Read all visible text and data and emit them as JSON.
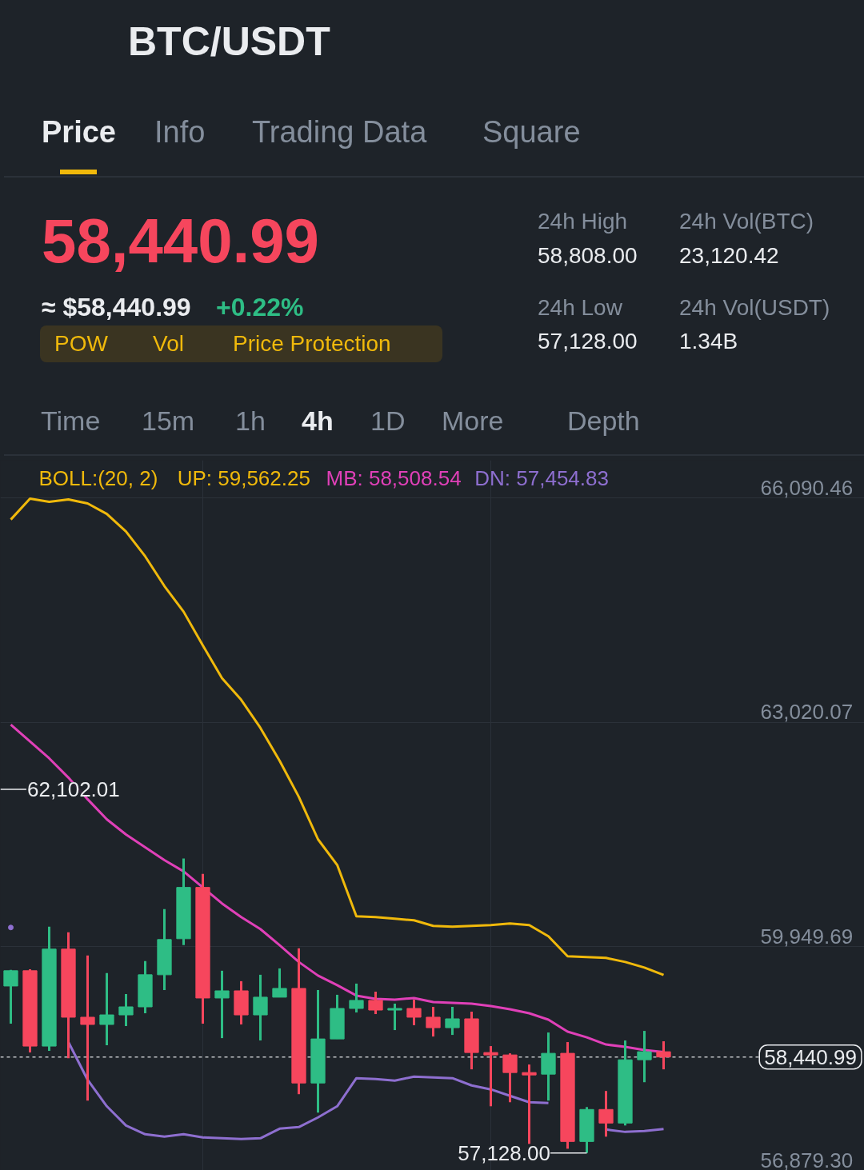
{
  "chart_data": {
    "type": "candlestick",
    "title": "BTC/USDT",
    "legend_title": "BOLL:(20, 2)",
    "legend": "top",
    "grid": true,
    "tick_labels": "y",
    "categories": [
      null,
      null,
      null,
      null,
      null,
      null,
      null,
      null,
      null,
      null,
      null,
      null,
      null,
      null,
      null,
      null,
      null,
      null,
      null,
      null,
      null,
      null,
      null,
      null,
      null,
      null,
      null,
      null,
      null,
      null,
      null,
      null,
      null,
      null,
      null
    ],
    "ohlc": [
      [
        59412,
        59632,
        58897,
        59621
      ],
      [
        59621,
        59642,
        58502,
        58590
      ],
      [
        58590,
        60224,
        58524,
        59917
      ],
      [
        59917,
        60147,
        58425,
        58985
      ],
      [
        58985,
        59829,
        57844,
        58886
      ],
      [
        58886,
        59588,
        58601,
        59017
      ],
      [
        59017,
        59303,
        58864,
        59127
      ],
      [
        59127,
        59752,
        59039,
        59566
      ],
      [
        59566,
        60465,
        59357,
        60048
      ],
      [
        60059,
        61156,
        59971,
        60761
      ],
      [
        60761,
        60947,
        58897,
        59248
      ],
      [
        59248,
        59621,
        58699,
        59346
      ],
      [
        59346,
        59478,
        58886,
        59017
      ],
      [
        59017,
        59566,
        58667,
        59259
      ],
      [
        59259,
        59653,
        59259,
        59379
      ],
      [
        59379,
        59928,
        57932,
        58085
      ],
      [
        58085,
        59357,
        57680,
        58688
      ],
      [
        58688,
        59292,
        58688,
        59105
      ],
      [
        59105,
        59445,
        59050,
        59215
      ],
      [
        59215,
        59335,
        59028,
        59083
      ],
      [
        59083,
        59171,
        58809,
        59105
      ],
      [
        59105,
        59226,
        58875,
        58985
      ],
      [
        58985,
        59127,
        58721,
        58842
      ],
      [
        58842,
        59127,
        58743,
        58963
      ],
      [
        58963,
        59061,
        58272,
        58502
      ],
      [
        58502,
        58590,
        57767,
        58469
      ],
      [
        58469,
        58491,
        57822,
        58228
      ],
      [
        58228,
        58338,
        57252,
        58195
      ],
      [
        58206,
        58776,
        57844,
        58491
      ],
      [
        58491,
        58645,
        57186,
        57285
      ],
      [
        57285,
        57756,
        57128.0,
        57723
      ],
      [
        57723,
        57976,
        57351,
        57537
      ],
      [
        57537,
        58667,
        57504,
        58403
      ],
      [
        58403,
        58798,
        58096,
        58513
      ],
      [
        58513,
        58656,
        58272,
        58440.99
      ]
    ],
    "series": [
      {
        "type": "line",
        "name": "UP: 59,562.25",
        "color": "#f0b90b",
        "values": [
          65794,
          66080,
          66036,
          66069,
          66014,
          65871,
          65630,
          65290,
          64884,
          64533,
          64073,
          63623,
          63327,
          62943,
          62494,
          62000,
          61419,
          61068,
          60366,
          60355,
          60333,
          60311,
          60235,
          60224,
          60235,
          60246,
          60268,
          60246,
          60092,
          59818,
          59807,
          59796,
          59741,
          59664,
          59562.25
        ]
      },
      {
        "type": "line",
        "name": "MB: 58,508.54",
        "color": "#e040b8",
        "values": [
          62987,
          62757,
          62527,
          62263,
          61967,
          61693,
          61485,
          61309,
          61134,
          60980,
          60761,
          60542,
          60355,
          60191,
          59971,
          59741,
          59555,
          59423,
          59281,
          59237,
          59226,
          59248,
          59193,
          59182,
          59171,
          59138,
          59094,
          59039,
          58952,
          58787,
          58710,
          58612,
          58579,
          58535,
          58508.54
        ]
      },
      {
        "type": "line",
        "name": "DN: 57,454.83",
        "color": "#8e6fd0",
        "values": [
          60213,
          null,
          null,
          58645,
          58129,
          57767,
          57504,
          57384,
          57351,
          57384,
          57340,
          57329,
          57318,
          57329,
          57460,
          57482,
          57614,
          57767,
          58151,
          58140,
          58118,
          58173,
          58162,
          58151,
          58052,
          57998,
          57910,
          57822,
          57811,
          null,
          null,
          57449,
          57416,
          57427,
          57454.83
        ]
      }
    ],
    "ylim": [
      56780,
      66605
    ],
    "yticks": [
      {
        "value": 66090.46,
        "label": "66,090.46"
      },
      {
        "value": 63020.07,
        "label": "63,020.07"
      },
      {
        "value": 59949.69,
        "label": "59,949.69"
      },
      {
        "value": 56879.3,
        "label": "56,879.30"
      }
    ],
    "ref_lines": [
      {
        "axis": "y",
        "value": 58440.99,
        "label": "58,440.99",
        "line_style": "dashed"
      }
    ],
    "annotations": [
      "Price",
      "Info",
      "Trading Data",
      "Square",
      "58,440.99",
      "≈ $58,440.99",
      "+0.22%",
      "POW",
      "Vol",
      "Price Protection",
      "24h High",
      "58,808.00",
      "24h Low",
      "57,128.00",
      "24h Vol(BTC)",
      "23,120.42",
      "24h Vol(USDT)",
      "1.34B",
      "Time",
      "15m",
      "1h",
      "4h",
      "1D",
      "More",
      "Depth",
      {
        "text": "62,102.01",
        "y": 62102.01
      },
      "57,128.00"
    ]
  }
}
